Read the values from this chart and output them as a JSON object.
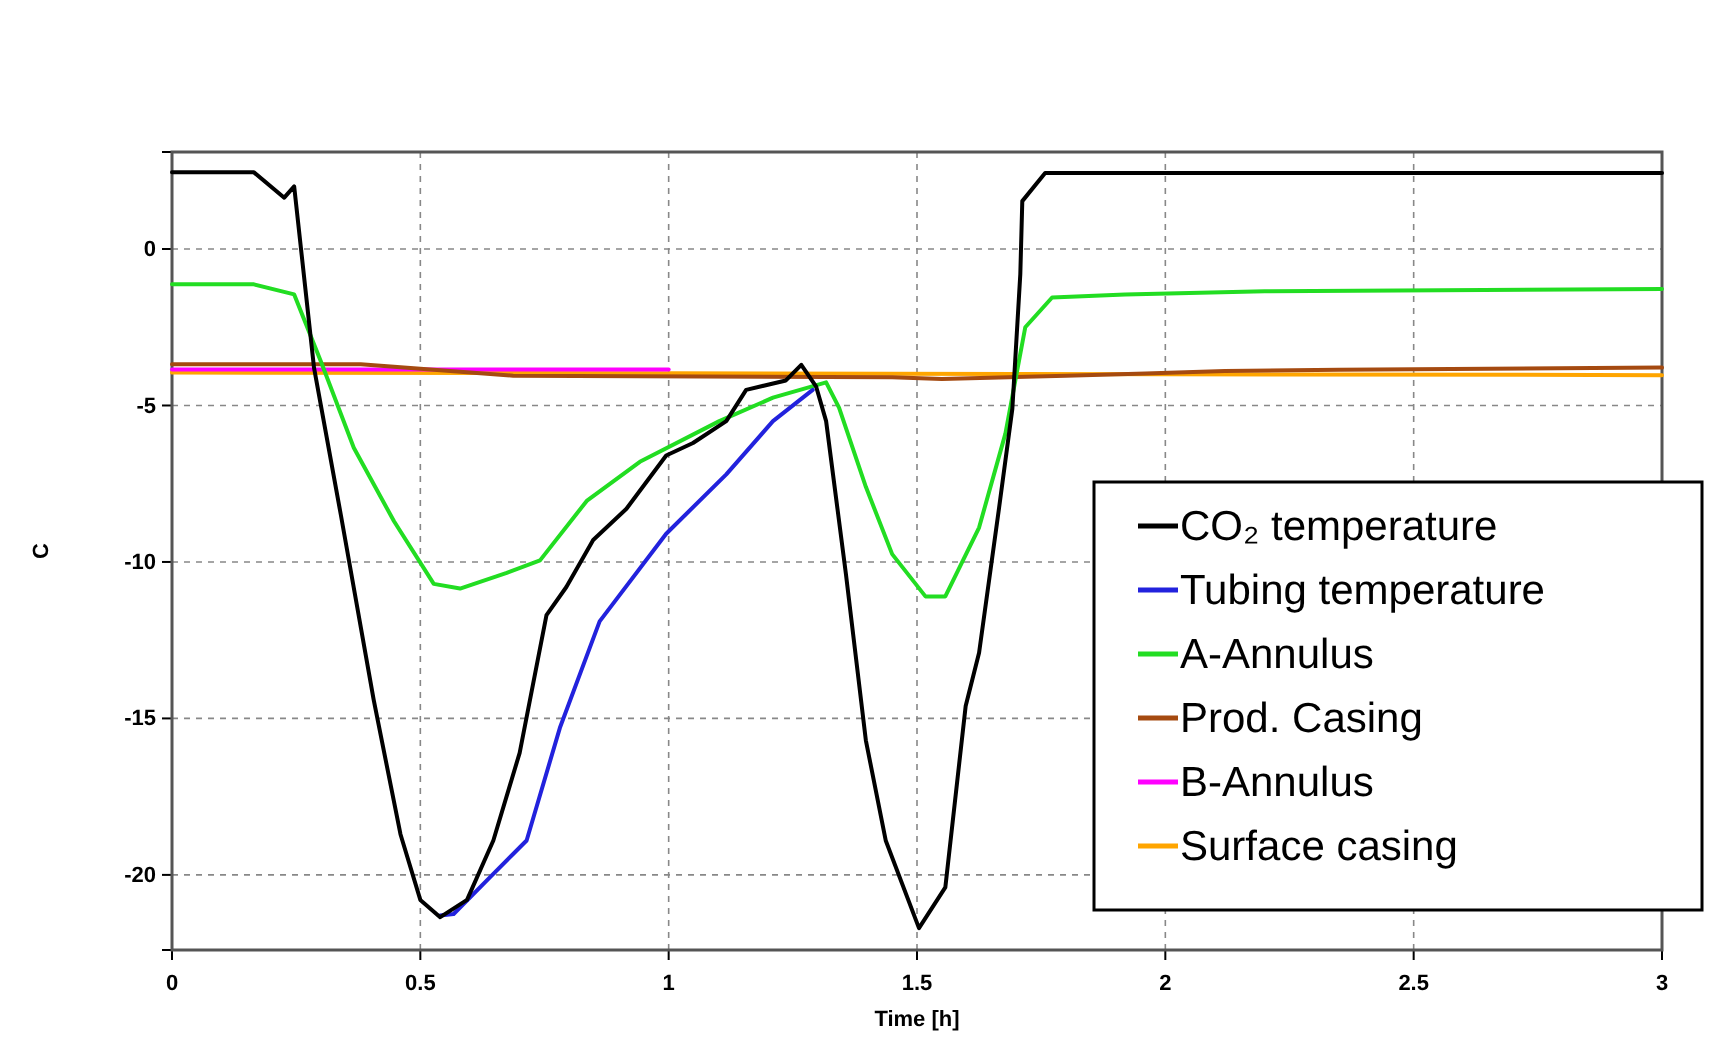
{
  "chart_data": {
    "type": "line",
    "xlabel": "Time [h]",
    "ylabel": "C",
    "xlim": [
      0,
      3
    ],
    "ylim": [
      -22.4,
      3.1
    ],
    "xticks": [
      0,
      0.5,
      1,
      1.5,
      2,
      2.5,
      3
    ],
    "yticks": [
      -20,
      -15,
      -10,
      -5,
      0
    ],
    "grid": true,
    "legend": "right",
    "marker": "none",
    "line_style": "solid",
    "series": [
      {
        "name": "CO₂ temperature",
        "color": "#000000",
        "x": [
          0,
          0.165,
          0.226,
          0.246,
          0.286,
          0.34,
          0.406,
          0.46,
          0.5,
          0.54,
          0.594,
          0.647,
          0.7,
          0.754,
          0.794,
          0.848,
          0.915,
          0.995,
          1.049,
          1.116,
          1.156,
          1.236,
          1.267,
          1.297,
          1.317,
          1.357,
          1.397,
          1.437,
          1.504,
          1.557,
          1.598,
          1.625,
          1.665,
          1.692,
          1.708,
          1.712,
          1.758,
          3
        ],
        "values": [
          2.45,
          2.45,
          1.64,
          2.0,
          -3.8,
          -8.5,
          -14.4,
          -18.7,
          -20.8,
          -21.35,
          -20.8,
          -18.9,
          -16.1,
          -11.7,
          -10.8,
          -9.3,
          -8.3,
          -6.6,
          -6.2,
          -5.5,
          -4.5,
          -4.2,
          -3.7,
          -4.4,
          -5.5,
          -10.4,
          -15.7,
          -18.9,
          -21.7,
          -20.4,
          -14.6,
          -12.9,
          -8.3,
          -5.1,
          -0.8,
          1.53,
          2.43,
          2.43
        ]
      },
      {
        "name": "Tubing temperature",
        "color": "#2222dd",
        "x": [
          0.54,
          0.567,
          0.647,
          0.714,
          0.781,
          0.861,
          0.995,
          1.116,
          1.21,
          1.29
        ],
        "values": [
          -21.3,
          -21.25,
          -19.97,
          -18.9,
          -15.3,
          -11.9,
          -9.1,
          -7.2,
          -5.5,
          -4.5
        ]
      },
      {
        "name": "A-Annulus",
        "color": "#22dd22",
        "x": [
          0,
          0.165,
          0.246,
          0.3,
          0.366,
          0.447,
          0.527,
          0.58,
          0.674,
          0.741,
          0.835,
          0.942,
          1.102,
          1.21,
          1.317,
          1.343,
          1.397,
          1.45,
          1.517,
          1.557,
          1.625,
          1.678,
          1.718,
          1.772,
          1.919,
          2.2,
          3
        ],
        "values": [
          -1.13,
          -1.13,
          -1.45,
          -3.6,
          -6.35,
          -8.7,
          -10.7,
          -10.85,
          -10.35,
          -9.95,
          -8.05,
          -6.8,
          -5.5,
          -4.75,
          -4.26,
          -5.07,
          -7.6,
          -9.75,
          -11.1,
          -11.1,
          -8.9,
          -5.9,
          -2.5,
          -1.55,
          -1.45,
          -1.35,
          -1.28
        ]
      },
      {
        "name": "Prod. Casing",
        "color": "#a54a10",
        "x": [
          0,
          0.38,
          0.687,
          1.45,
          1.55,
          1.8,
          1.96,
          2.12,
          2.35,
          3
        ],
        "values": [
          -3.68,
          -3.68,
          -4.05,
          -4.1,
          -4.15,
          -4.05,
          -3.98,
          -3.9,
          -3.86,
          -3.79
        ]
      },
      {
        "name": "B-Annulus",
        "color": "#ff00ff",
        "x": [
          0,
          1.0
        ],
        "values": [
          -3.85,
          -3.85
        ]
      },
      {
        "name": "Surface casing",
        "color": "#ffa500",
        "x": [
          0,
          1.0,
          2.0,
          3.0
        ],
        "values": [
          -3.95,
          -3.97,
          -4.0,
          -4.03
        ]
      }
    ]
  }
}
